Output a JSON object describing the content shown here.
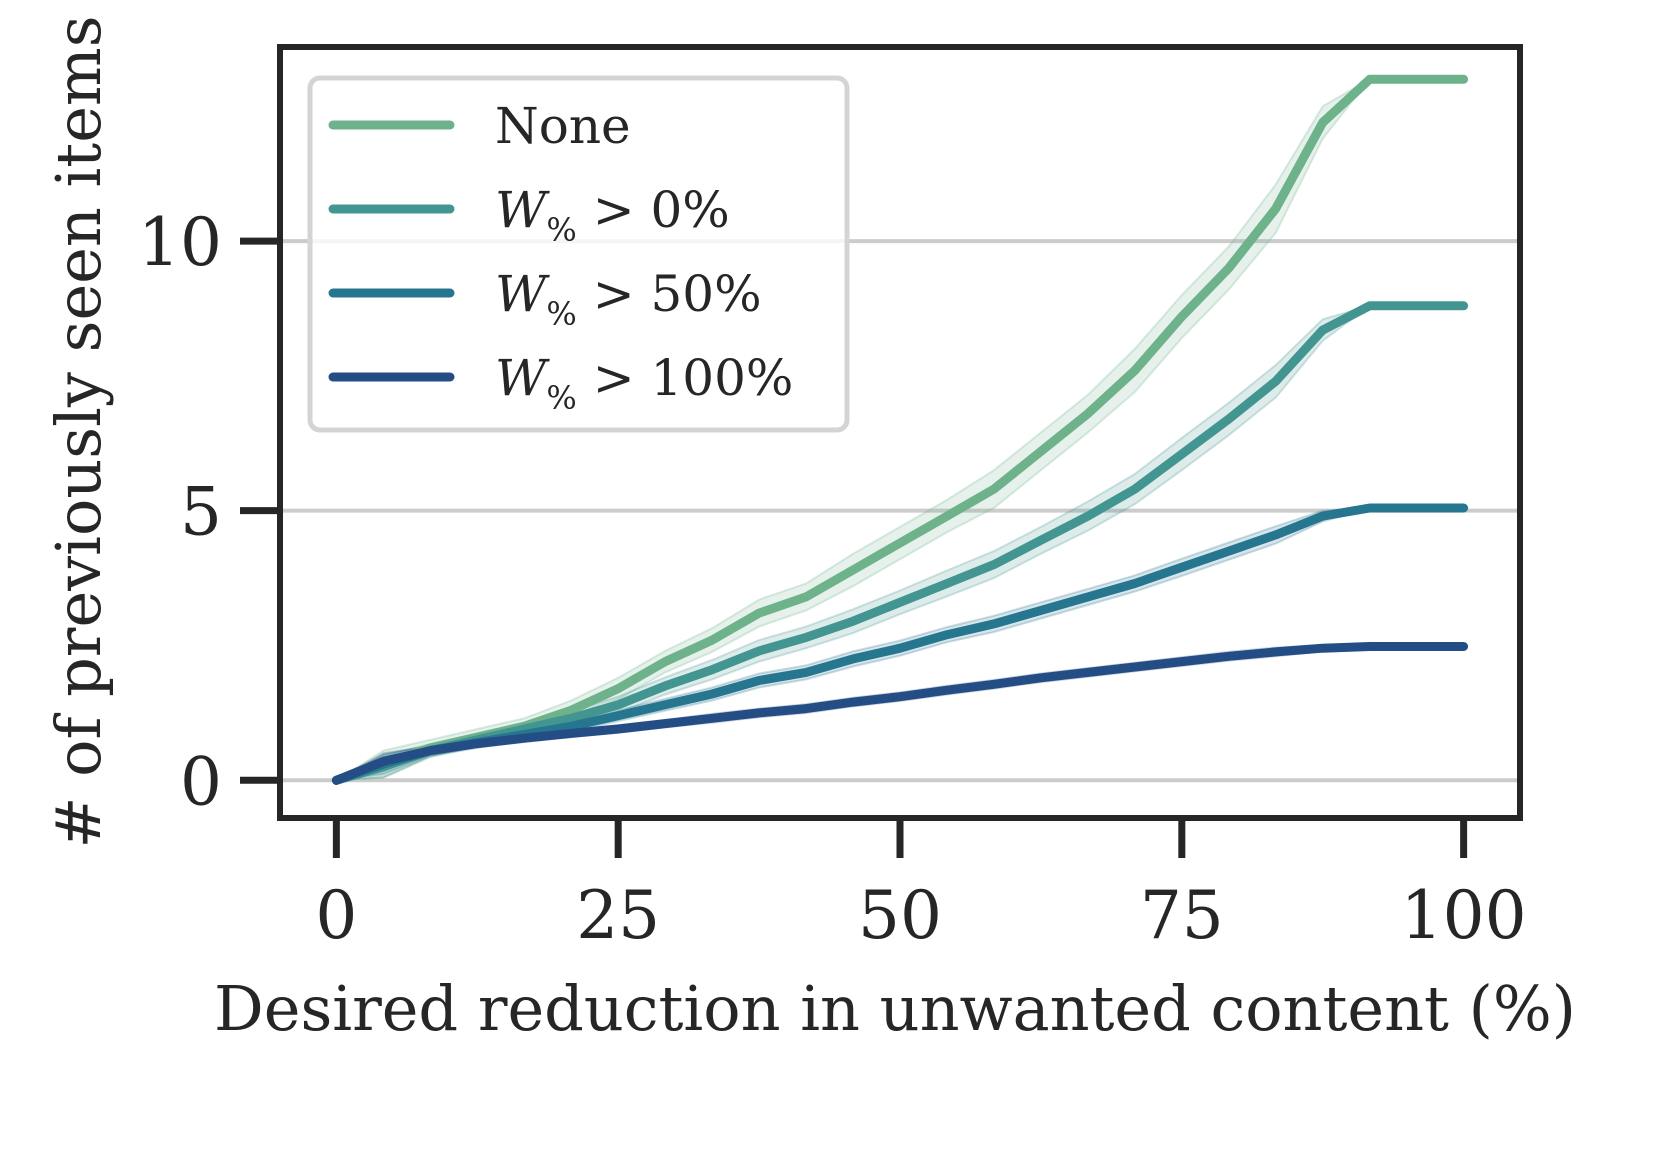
{
  "chart_data": {
    "type": "line",
    "title": "",
    "xlabel": "Desired reduction in unwanted content (%)",
    "ylabel": "# of previously seen items",
    "xlim": [
      -5,
      105
    ],
    "ylim": [
      -0.7,
      13.6
    ],
    "xticks": [
      0,
      25,
      50,
      75,
      100
    ],
    "xtick_labels": [
      "0",
      "25",
      "50",
      "75",
      "100"
    ],
    "yticks": [
      0,
      5,
      10
    ],
    "ytick_labels": [
      "0",
      "5",
      "10"
    ],
    "grid": "horizontal",
    "legend_position": "upper-left",
    "x": [
      0,
      4.17,
      8.33,
      12.5,
      16.67,
      20.83,
      25,
      29.17,
      33.33,
      37.5,
      41.67,
      45.83,
      50,
      54.17,
      58.33,
      62.5,
      66.67,
      70.83,
      75,
      79.17,
      83.33,
      87.5,
      91.67,
      95.83,
      100
    ],
    "series": [
      {
        "name": "None",
        "legend_label": "None",
        "legend_math": null,
        "color": "#6db28b",
        "values": [
          0,
          0.3,
          0.6,
          0.8,
          1.0,
          1.3,
          1.7,
          2.2,
          2.6,
          3.1,
          3.4,
          3.9,
          4.4,
          4.9,
          5.4,
          6.1,
          6.8,
          7.6,
          8.6,
          9.5,
          10.6,
          12.2,
          13.0,
          13.0,
          13.0
        ],
        "ci": [
          0,
          0.25,
          0.15,
          0.15,
          0.15,
          0.18,
          0.2,
          0.2,
          0.22,
          0.25,
          0.25,
          0.3,
          0.3,
          0.3,
          0.35,
          0.35,
          0.35,
          0.4,
          0.4,
          0.4,
          0.45,
          0.3,
          0.0,
          0.0,
          0.0
        ]
      },
      {
        "name": "W% > 0%",
        "legend_label": "W% > 0%",
        "legend_math": {
          "var": "W",
          "sub": "%",
          "op": ">",
          "value": "0%"
        },
        "color": "#429590",
        "values": [
          0,
          0.25,
          0.55,
          0.75,
          0.95,
          1.15,
          1.4,
          1.75,
          2.05,
          2.4,
          2.65,
          2.95,
          3.3,
          3.65,
          4.0,
          4.45,
          4.9,
          5.4,
          6.05,
          6.7,
          7.4,
          8.35,
          8.8,
          8.8,
          8.8
        ],
        "ci": [
          0,
          0.2,
          0.12,
          0.12,
          0.12,
          0.14,
          0.15,
          0.16,
          0.18,
          0.2,
          0.2,
          0.22,
          0.22,
          0.24,
          0.25,
          0.25,
          0.27,
          0.28,
          0.3,
          0.3,
          0.3,
          0.2,
          0.0,
          0.0,
          0.0
        ]
      },
      {
        "name": "W% > 50%",
        "legend_label": "W% > 50%",
        "legend_math": {
          "var": "W",
          "sub": "%",
          "op": ">",
          "value": "50%"
        },
        "color": "#277690",
        "values": [
          0,
          0.3,
          0.55,
          0.7,
          0.85,
          1.0,
          1.2,
          1.4,
          1.6,
          1.85,
          2.0,
          2.25,
          2.45,
          2.7,
          2.9,
          3.15,
          3.4,
          3.65,
          3.95,
          4.25,
          4.55,
          4.9,
          5.05,
          5.05,
          5.05
        ],
        "ci": [
          0,
          0.18,
          0.1,
          0.1,
          0.1,
          0.1,
          0.1,
          0.11,
          0.12,
          0.13,
          0.13,
          0.14,
          0.14,
          0.14,
          0.15,
          0.15,
          0.15,
          0.15,
          0.16,
          0.16,
          0.16,
          0.1,
          0.0,
          0.0,
          0.0
        ]
      },
      {
        "name": "W% > 100%",
        "legend_label": "W% > 100%",
        "legend_math": {
          "var": "W",
          "sub": "%",
          "op": ">",
          "value": "100%"
        },
        "color": "#234d84",
        "values": [
          0,
          0.35,
          0.55,
          0.68,
          0.78,
          0.87,
          0.95,
          1.05,
          1.15,
          1.25,
          1.33,
          1.45,
          1.55,
          1.67,
          1.78,
          1.9,
          2.0,
          2.1,
          2.2,
          2.3,
          2.38,
          2.45,
          2.48,
          2.48,
          2.48
        ],
        "ci": [
          0,
          0.15,
          0.08,
          0.07,
          0.07,
          0.07,
          0.07,
          0.07,
          0.08,
          0.08,
          0.08,
          0.08,
          0.08,
          0.08,
          0.08,
          0.08,
          0.08,
          0.08,
          0.08,
          0.08,
          0.08,
          0.06,
          0.0,
          0.0,
          0.0
        ]
      }
    ]
  }
}
